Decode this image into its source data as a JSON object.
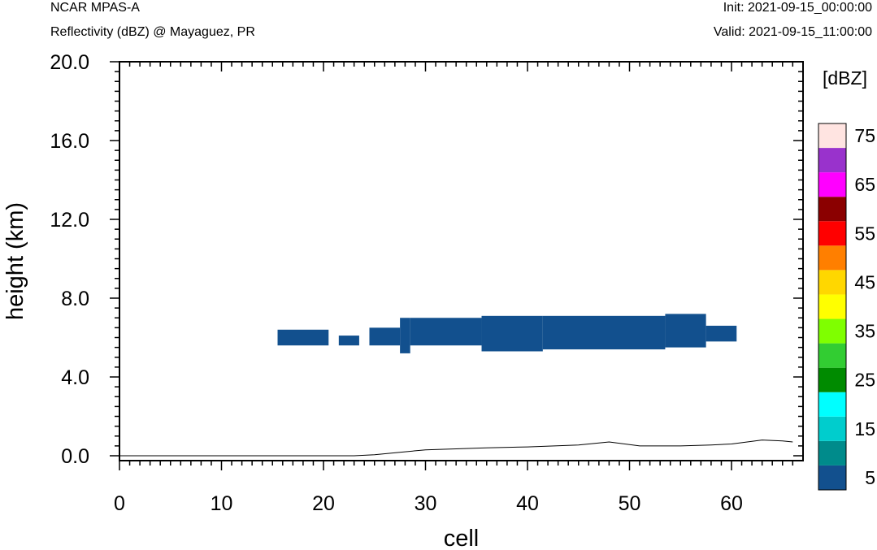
{
  "header": {
    "model": "NCAR MPAS-A",
    "subtitle": "Reflectivity (dBZ) @ Mayaguez, PR",
    "init": "Init: 2021-09-15_00:00:00",
    "valid": "Valid: 2021-09-15_11:00:00"
  },
  "chart_data": {
    "type": "heatmap",
    "xlabel": "cell",
    "ylabel": "height (km)",
    "xlim": [
      0,
      66
    ],
    "ylim": [
      0,
      20
    ],
    "x_ticks": [
      "0",
      "10",
      "20",
      "30",
      "40",
      "50",
      "60"
    ],
    "y_ticks": [
      "0.0",
      "4.0",
      "8.0",
      "12.0",
      "16.0",
      "20.0"
    ],
    "colorbar": {
      "unit": "[dBZ]",
      "levels": [
        5,
        10,
        15,
        20,
        25,
        30,
        35,
        40,
        45,
        50,
        55,
        60,
        65,
        70,
        75
      ],
      "labels": [
        "5",
        "15",
        "25",
        "35",
        "45",
        "55",
        "65",
        "75"
      ],
      "colors": [
        "#12508e",
        "#008b8b",
        "#00cdcd",
        "#00ffff",
        "#008b00",
        "#32cd32",
        "#7fff00",
        "#ffff00",
        "#ffd700",
        "#ff7f00",
        "#ff0000",
        "#8b0000",
        "#ff00ff",
        "#9932cc",
        "#ffe4e1"
      ]
    },
    "echo_color": "#12508e",
    "echo_cells": [
      {
        "x0": 15.5,
        "x1": 20.5,
        "y0": 5.6,
        "y1": 6.4
      },
      {
        "x0": 21.5,
        "x1": 23.5,
        "y0": 5.6,
        "y1": 6.1
      },
      {
        "x0": 24.5,
        "x1": 27.5,
        "y0": 5.6,
        "y1": 6.5
      },
      {
        "x0": 27.5,
        "x1": 28.5,
        "y0": 5.2,
        "y1": 7.0
      },
      {
        "x0": 28.5,
        "x1": 35.5,
        "y0": 5.6,
        "y1": 7.0
      },
      {
        "x0": 35.5,
        "x1": 41.5,
        "y0": 5.3,
        "y1": 7.1
      },
      {
        "x0": 41.5,
        "x1": 53.5,
        "y0": 5.4,
        "y1": 7.1
      },
      {
        "x0": 53.5,
        "x1": 57.5,
        "y0": 5.5,
        "y1": 7.2
      },
      {
        "x0": 57.5,
        "x1": 60.5,
        "y0": 5.8,
        "y1": 6.6
      }
    ],
    "terrain": {
      "x": [
        0,
        23,
        25,
        28,
        30,
        33,
        36,
        40,
        45,
        48,
        51,
        55,
        58,
        60,
        63,
        65,
        66
      ],
      "y": [
        0,
        0,
        0.05,
        0.2,
        0.3,
        0.35,
        0.4,
        0.45,
        0.55,
        0.7,
        0.5,
        0.5,
        0.55,
        0.6,
        0.8,
        0.75,
        0.7
      ]
    }
  }
}
